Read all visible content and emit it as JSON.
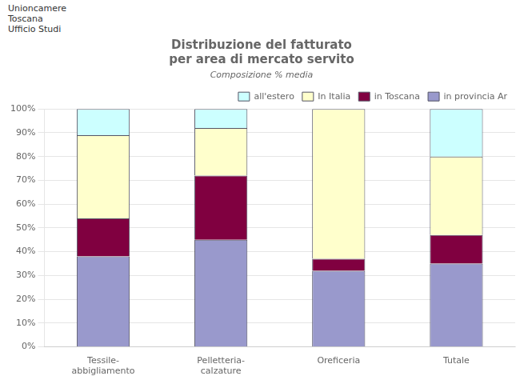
{
  "chart_data": {
    "type": "bar",
    "title": "Distribuzione del fatturato\nper area di mercato servito",
    "subtitle": "Composizione % media",
    "annotations": [
      "Unioncamere",
      "Toscana",
      "Ufficio Studi"
    ],
    "categories": [
      "Tessile-\nabbigliamento",
      "Pelletteria-\ncalzature",
      "Oreficeria",
      "Tutale"
    ],
    "series": [
      {
        "name": "in provincia Ar",
        "color": "#9999cc",
        "values": [
          38,
          45,
          32,
          35
        ]
      },
      {
        "name": "in Toscana",
        "color": "#800040",
        "values": [
          16,
          27,
          5,
          12
        ]
      },
      {
        "name": "In Italia",
        "color": "#ffffcc",
        "values": [
          35,
          20,
          63,
          33
        ]
      },
      {
        "name": "all'estero",
        "color": "#ccffff",
        "values": [
          11,
          8,
          0,
          20
        ]
      }
    ],
    "stacked": true,
    "ylim": [
      0,
      100
    ],
    "yticks": [
      {
        "value": 0,
        "label": "0%"
      },
      {
        "value": 10,
        "label": "10%"
      },
      {
        "value": 20,
        "label": "20%"
      },
      {
        "value": 30,
        "label": "30%"
      },
      {
        "value": 40,
        "label": "40%"
      },
      {
        "value": 50,
        "label": "50%"
      },
      {
        "value": 60,
        "label": "60%"
      },
      {
        "value": 70,
        "label": "70%"
      },
      {
        "value": 80,
        "label": "80%"
      },
      {
        "value": 90,
        "label": "90%"
      },
      {
        "value": 100,
        "label": "100%"
      }
    ],
    "grid": true,
    "legend": "upper right"
  }
}
